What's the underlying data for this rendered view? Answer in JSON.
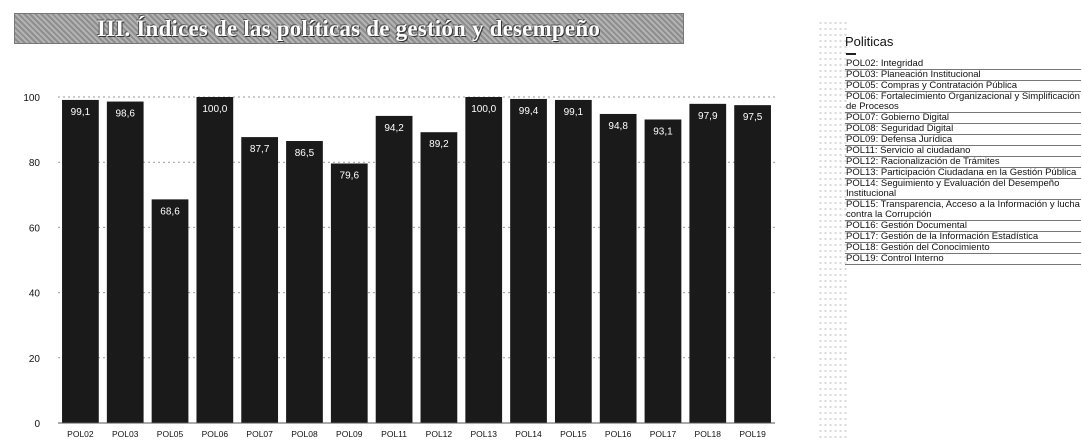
{
  "title": "III. Índices de las políticas de gestión y desempeño",
  "legend": {
    "title": "Politicas",
    "items": [
      "POL02: Integridad",
      "POL03: Planeación Institucional",
      "POL05: Compras y Contratación Pública",
      "POL06: Fortalecimiento Organizacional y Simplificación de Procesos",
      "POL07: Gobierno Digital",
      "POL08: Seguridad Digital",
      "POL09: Defensa Jurídica",
      "POL11: Servicio al ciudadano",
      "POL12: Racionalización de Trámites",
      "POL13: Participación Ciudadana en la Gestión Pública",
      "POL14: Seguimiento y Evaluación del Desempeño Institucional",
      "POL15: Transparencia, Acceso a la Información y lucha contra la Corrupción",
      "POL16: Gestión Documental",
      "POL17: Gestión de la Información Estadística",
      "POL18: Gestión del Conocimiento",
      "POL19: Control Interno"
    ]
  },
  "chart_data": {
    "type": "bar",
    "categories": [
      "POL02",
      "POL03",
      "POL05",
      "POL06",
      "POL07",
      "POL08",
      "POL09",
      "POL11",
      "POL12",
      "POL13",
      "POL14",
      "POL15",
      "POL16",
      "POL17",
      "POL18",
      "POL19"
    ],
    "values": [
      99.1,
      98.6,
      68.6,
      100.0,
      87.7,
      86.5,
      79.6,
      94.2,
      89.2,
      100.0,
      99.4,
      99.1,
      94.8,
      93.1,
      97.9,
      97.5
    ],
    "value_labels": [
      "99,1",
      "98,6",
      "68,6",
      "100,0",
      "87,7",
      "86,5",
      "79,6",
      "94,2",
      "89,2",
      "100,0",
      "99,4",
      "99,1",
      "94,8",
      "93,1",
      "97,9",
      "97,5"
    ],
    "yticks": [
      0,
      20,
      40,
      60,
      80,
      100
    ],
    "ylim": [
      0,
      100
    ],
    "grid": true,
    "legend_position": "right",
    "bar_color": "#1a1a1a"
  }
}
